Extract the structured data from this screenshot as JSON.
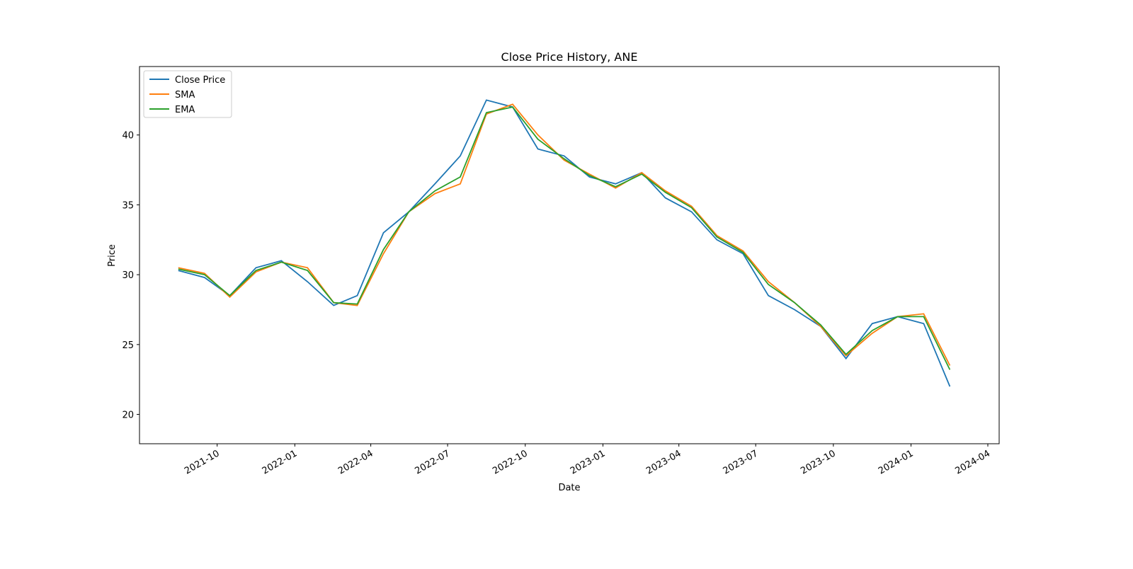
{
  "chart_data": {
    "type": "line",
    "title": "Close Price History, ANE",
    "x_label": "Date",
    "y_label": "Price",
    "x": [
      "2021-08",
      "2021-09",
      "2021-10",
      "2021-11",
      "2021-12",
      "2022-01",
      "2022-02",
      "2022-03",
      "2022-04",
      "2022-05",
      "2022-06",
      "2022-07",
      "2022-08",
      "2022-09",
      "2022-10",
      "2022-11",
      "2022-12",
      "2023-01",
      "2023-02",
      "2023-03",
      "2023-04",
      "2023-05",
      "2023-06",
      "2023-07",
      "2023-08",
      "2023-09",
      "2023-10",
      "2023-11",
      "2023-12",
      "2024-01",
      "2024-02"
    ],
    "series": [
      {
        "name": "Close Price",
        "color": "#1f77b4",
        "values": [
          30.3,
          29.8,
          28.5,
          30.5,
          31.0,
          29.5,
          27.8,
          28.5,
          33.0,
          34.5,
          36.5,
          38.5,
          42.5,
          42.0,
          39.0,
          38.5,
          37.0,
          36.5,
          37.3,
          35.5,
          34.5,
          32.5,
          31.5,
          28.5,
          27.5,
          26.3,
          24.0,
          26.5,
          27.0,
          26.5,
          22.0
        ]
      },
      {
        "name": "SMA",
        "color": "#ff7f0e",
        "values": [
          30.5,
          30.1,
          28.4,
          30.2,
          30.9,
          30.5,
          28.0,
          27.8,
          31.5,
          34.5,
          35.8,
          36.5,
          41.5,
          42.2,
          40.0,
          38.2,
          37.2,
          36.2,
          37.3,
          36.0,
          34.9,
          32.8,
          31.7,
          29.5,
          28.0,
          26.3,
          24.2,
          25.8,
          27.0,
          27.2,
          23.5
        ]
      },
      {
        "name": "EMA",
        "color": "#2ca02c",
        "values": [
          30.4,
          30.0,
          28.5,
          30.3,
          30.9,
          30.3,
          28.0,
          27.9,
          31.8,
          34.5,
          36.0,
          37.0,
          41.6,
          42.0,
          39.7,
          38.3,
          37.1,
          36.3,
          37.2,
          35.9,
          34.8,
          32.7,
          31.6,
          29.3,
          28.0,
          26.4,
          24.3,
          26.0,
          27.0,
          27.0,
          23.2
        ]
      }
    ],
    "xlim": [
      "2021-07",
      "2024-04"
    ],
    "xticks": [
      "2021-10",
      "2022-01",
      "2022-04",
      "2022-07",
      "2022-10",
      "2023-01",
      "2023-04",
      "2023-07",
      "2023-10",
      "2024-01",
      "2024-04"
    ],
    "ylim": [
      17.9,
      44.9
    ],
    "yticks": [
      20,
      25,
      30,
      35,
      40
    ],
    "grid": false,
    "legend": "upper-left"
  }
}
